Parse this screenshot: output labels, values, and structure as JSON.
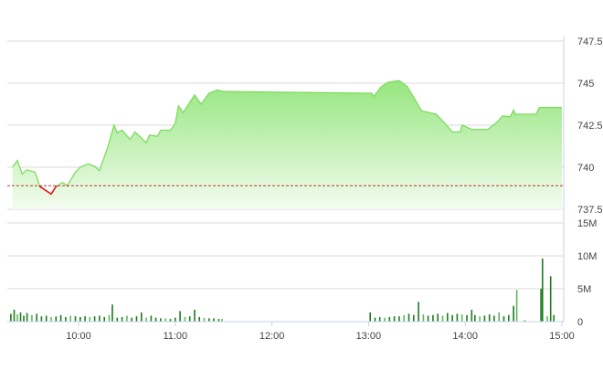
{
  "chart_data": [
    {
      "type": "area",
      "title": "",
      "xlabel": "",
      "ylabel": "",
      "ylim": [
        737.5,
        747.5
      ],
      "yticks": [
        "737.5",
        "740",
        "742.5",
        "745",
        "747.5"
      ],
      "y_axis_position": "right",
      "grid": true,
      "reference_line": 738.9,
      "colors": {
        "line": "#7ddc5e",
        "fill_top": "#96e67f",
        "fill_bottom": "#f3fcf0",
        "below_reference": "#e8141c",
        "reference": "#c0392b"
      },
      "series": [
        {
          "x": [
            "9:19",
            "9:22",
            "9:25",
            "9:28",
            "9:33",
            "9:36",
            "9:40",
            "9:43",
            "9:46",
            "9:50",
            "9:53",
            "9:58",
            "10:01",
            "10:06",
            "10:10",
            "10:13",
            "10:18",
            "10:22",
            "10:24",
            "10:27",
            "10:32",
            "10:35",
            "10:42",
            "10:44",
            "10:49",
            "10:51",
            "10:57",
            "11:00",
            "11:02",
            "11:05",
            "11:08",
            "11:12",
            "11:16",
            "11:21",
            "11:26",
            "11:30",
            "13:02",
            "13:03",
            "13:08",
            "13:12",
            "13:19",
            "13:24",
            "13:28",
            "13:33",
            "13:42",
            "13:48",
            "13:52",
            "13:57",
            "13:58",
            "14:04",
            "14:14",
            "14:20",
            "14:23",
            "14:28",
            "14:30",
            "14:31",
            "14:44",
            "14:46",
            "15:00"
          ],
          "y": [
            740.0,
            740.4,
            739.6,
            739.85,
            739.7,
            738.85,
            738.6,
            738.4,
            738.85,
            739.1,
            738.9,
            739.7,
            740.0,
            740.2,
            740.05,
            739.8,
            741.15,
            742.5,
            742.05,
            742.2,
            741.65,
            742.1,
            741.45,
            741.9,
            741.85,
            742.2,
            742.2,
            742.6,
            743.65,
            743.25,
            743.7,
            744.3,
            743.75,
            744.4,
            744.6,
            744.5,
            744.4,
            744.2,
            744.8,
            745.05,
            745.15,
            744.8,
            744.15,
            743.35,
            743.15,
            742.55,
            742.1,
            742.1,
            742.5,
            742.25,
            742.25,
            742.7,
            743.05,
            743.0,
            743.4,
            743.15,
            743.15,
            743.55,
            743.55
          ]
        }
      ]
    },
    {
      "type": "bar",
      "title": "",
      "xlabel": "",
      "ylabel": "",
      "ylim": [
        0,
        15
      ],
      "yticks": [
        "0",
        "5M",
        "10M",
        "15M"
      ],
      "y_axis_position": "right",
      "xticks": [
        "10:00",
        "11:00",
        "12:00",
        "13:00",
        "14:00",
        "15:00"
      ],
      "grid": true,
      "colors": {
        "bar": "#1e7b1e",
        "bar_light": "#5cb85c"
      },
      "unit": "M",
      "series": [
        {
          "x": [
            "9:18",
            "9:20",
            "9:22",
            "9:24",
            "9:26",
            "9:28",
            "9:31",
            "9:34",
            "9:37",
            "9:40",
            "9:43",
            "9:46",
            "9:49",
            "9:52",
            "9:55",
            "9:58",
            "10:01",
            "10:04",
            "10:07",
            "10:10",
            "10:13",
            "10:16",
            "10:19",
            "10:21",
            "10:24",
            "10:27",
            "10:30",
            "10:33",
            "10:36",
            "10:39",
            "10:42",
            "10:45",
            "10:48",
            "10:51",
            "10:54",
            "10:57",
            "11:00",
            "11:03",
            "11:06",
            "11:09",
            "11:12",
            "11:15",
            "11:18",
            "11:21",
            "11:24",
            "11:27",
            "11:29",
            "13:01",
            "13:04",
            "13:07",
            "13:10",
            "13:13",
            "13:16",
            "13:19",
            "13:22",
            "13:25",
            "13:28",
            "13:31",
            "13:34",
            "13:37",
            "13:40",
            "13:43",
            "13:46",
            "13:49",
            "13:52",
            "13:55",
            "13:58",
            "14:01",
            "14:04",
            "14:06",
            "14:09",
            "14:12",
            "14:15",
            "14:18",
            "14:21",
            "14:24",
            "14:27",
            "14:30",
            "14:32",
            "14:37",
            "14:47",
            "14:48",
            "14:51",
            "14:53",
            "14:55"
          ],
          "y": [
            1.2,
            1.8,
            1.1,
            1.4,
            0.9,
            1.3,
            1.0,
            1.2,
            0.8,
            0.9,
            0.7,
            0.8,
            1.0,
            0.7,
            0.9,
            0.8,
            0.7,
            0.8,
            0.7,
            0.8,
            0.9,
            0.7,
            1.0,
            2.6,
            0.6,
            0.7,
            0.9,
            0.6,
            0.8,
            1.4,
            0.6,
            0.9,
            0.6,
            0.5,
            0.5,
            0.4,
            0.6,
            1.6,
            0.7,
            0.8,
            1.8,
            0.7,
            0.6,
            0.5,
            0.5,
            0.4,
            0.4,
            1.4,
            0.6,
            0.7,
            0.6,
            0.7,
            0.8,
            0.8,
            1.0,
            1.2,
            1.0,
            3.0,
            1.1,
            0.9,
            1.0,
            1.2,
            0.9,
            1.3,
            1.0,
            1.2,
            1.1,
            1.0,
            1.8,
            1.0,
            0.8,
            0.9,
            1.1,
            0.9,
            1.4,
            0.8,
            1.0,
            2.4,
            4.8,
            0.2,
            5.0,
            9.6,
            0.8,
            6.9,
            1.0
          ]
        }
      ]
    }
  ]
}
